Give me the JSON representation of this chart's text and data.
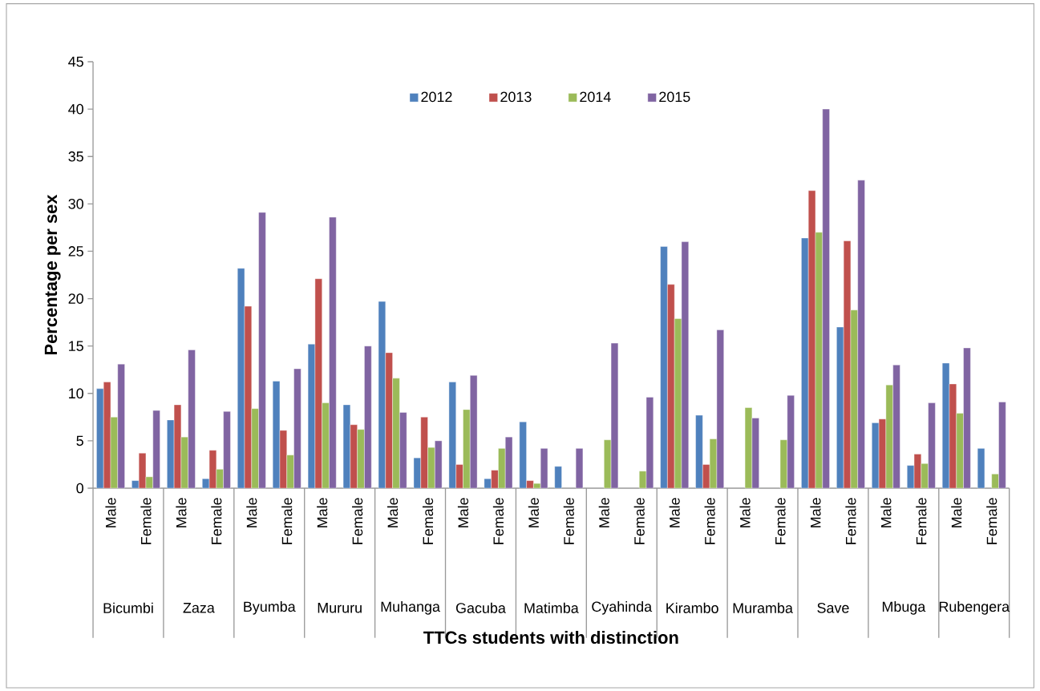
{
  "chart_data": {
    "type": "bar",
    "xlabel": "TTCs students with distinction",
    "ylabel": "Percentage per sex",
    "categories": [
      "Male",
      "Female",
      "Male",
      "Female",
      "Male",
      "Female",
      "Male",
      "Female",
      "Male",
      "Female",
      "Male",
      "Female",
      "Male",
      "Female",
      "Male",
      "Female",
      "Male",
      "Female",
      "Male",
      "Female",
      "Male",
      "Female",
      "Male",
      "Female",
      "Male",
      "Female"
    ],
    "annotations": [
      "Bicumbi",
      "Zaza",
      "Byumba",
      "Mururu",
      "Muhanga",
      "Gacuba",
      "Matimba",
      "Cyahinda",
      "Kirambo",
      "Muramba",
      "Save",
      "Mbuga",
      "Rubengera"
    ],
    "series": [
      {
        "name": "2012",
        "color": "#4f81bd",
        "values": [
          10.5,
          0.8,
          7.2,
          1.0,
          23.2,
          11.3,
          15.2,
          8.8,
          19.7,
          3.2,
          11.2,
          1.0,
          7.0,
          2.3,
          null,
          null,
          25.5,
          7.7,
          null,
          null,
          26.4,
          17.0,
          6.9,
          2.4,
          13.2,
          4.2
        ]
      },
      {
        "name": "2013",
        "color": "#c0504d",
        "values": [
          11.2,
          3.7,
          8.8,
          4.0,
          19.2,
          6.1,
          22.1,
          6.7,
          14.3,
          7.5,
          2.5,
          1.9,
          0.8,
          null,
          null,
          null,
          21.5,
          2.5,
          null,
          null,
          31.4,
          26.1,
          7.3,
          3.6,
          11.0,
          null
        ]
      },
      {
        "name": "2014",
        "color": "#9bbb59",
        "values": [
          7.5,
          1.2,
          5.4,
          2.0,
          8.4,
          3.5,
          9.0,
          6.2,
          11.6,
          4.3,
          8.3,
          4.2,
          0.5,
          null,
          5.1,
          1.8,
          17.9,
          5.2,
          8.5,
          5.1,
          27.0,
          18.8,
          10.9,
          2.6,
          7.9,
          1.5
        ]
      },
      {
        "name": "2015",
        "color": "#8064a2",
        "values": [
          13.1,
          8.2,
          14.6,
          8.1,
          29.1,
          12.6,
          28.6,
          15.0,
          8.0,
          5.0,
          11.9,
          5.4,
          4.2,
          4.2,
          15.3,
          9.6,
          26.0,
          16.7,
          7.4,
          9.8,
          40.0,
          32.5,
          13.0,
          9.0,
          14.8,
          9.1
        ]
      }
    ],
    "ylim": [
      0,
      45
    ],
    "yticks": [
      0,
      5,
      10,
      15,
      20,
      25,
      30,
      35,
      40,
      45
    ],
    "grid": false,
    "legend": "top"
  }
}
